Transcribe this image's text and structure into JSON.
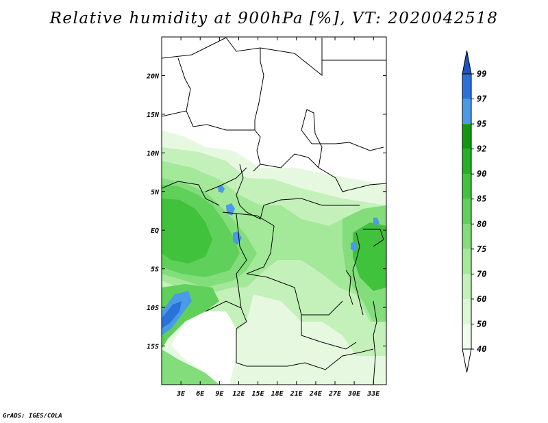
{
  "title": "Relative humidity at 900hPa [%], VT: 2020042518",
  "footer": "GrADS: IGES/COLA",
  "map": {
    "lat_labels": [
      "20N",
      "15N",
      "10N",
      "5N",
      "EQ",
      "5S",
      "10S",
      "15S"
    ],
    "lat_values": [
      20,
      15,
      10,
      5,
      0,
      -5,
      -10,
      -15
    ],
    "lon_labels": [
      "3E",
      "6E",
      "9E",
      "12E",
      "15E",
      "18E",
      "21E",
      "24E",
      "27E",
      "30E",
      "33E"
    ],
    "lon_values": [
      3,
      6,
      9,
      12,
      15,
      18,
      21,
      24,
      27,
      30,
      33
    ],
    "lon_range": [
      0,
      35
    ],
    "lat_range": [
      -20,
      25
    ]
  },
  "colorbar": {
    "labels": [
      "40",
      "50",
      "60",
      "70",
      "75",
      "80",
      "85",
      "90",
      "92",
      "95",
      "97",
      "99"
    ],
    "colors": [
      "#f0fcec",
      "#dcf7d4",
      "#c4f0ba",
      "#a4e89a",
      "#82dd7a",
      "#5fd05a",
      "#40c23c",
      "#26b024",
      "#129810",
      "#4b9ae8",
      "#2a72d8",
      "#1c55c0"
    ]
  }
}
